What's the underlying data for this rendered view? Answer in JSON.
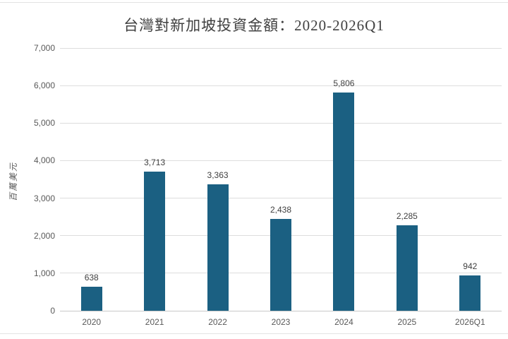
{
  "chart_data": {
    "type": "bar",
    "title": "台灣對新加坡投資金額：2020-2026Q1",
    "categories": [
      "2020",
      "2021",
      "2022",
      "2023",
      "2024",
      "2025",
      "2026Q1"
    ],
    "values": [
      638,
      3713,
      3363,
      2438,
      5806,
      2285,
      942
    ],
    "value_labels": [
      "638",
      "3,713",
      "3,363",
      "2,438",
      "5,806",
      "2,285",
      "942"
    ],
    "xlabel": "",
    "ylabel": "百萬美元",
    "ylim": [
      0,
      7000
    ],
    "ytick_step": 1000,
    "ytick_labels": [
      "0",
      "1,000",
      "2,000",
      "3,000",
      "4,000",
      "5,000",
      "6,000",
      "7,000"
    ],
    "grid": true,
    "legend": false,
    "colors": {
      "bar": "#1b6082",
      "grid": "#dddddd",
      "axis_line": "#c8c8c8",
      "title_text": "#404040",
      "tick_text": "#595959",
      "value_text": "#404040",
      "divider": "#e3e3e3"
    }
  }
}
